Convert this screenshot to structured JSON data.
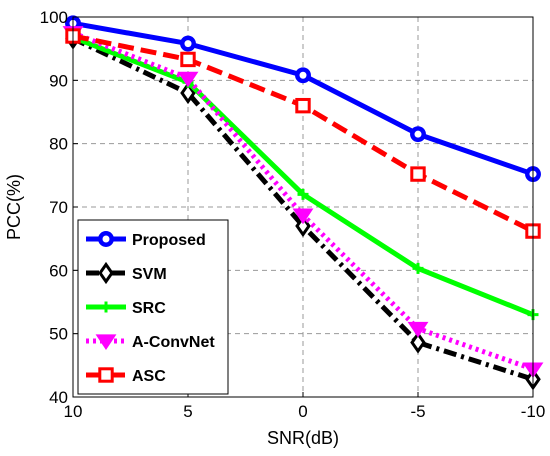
{
  "chart_data": {
    "type": "line",
    "xlabel": "SNR(dB)",
    "ylabel": "PCC(%)",
    "x": [
      10,
      5,
      0,
      -5,
      -10
    ],
    "x_tick_labels": [
      "10",
      "5",
      "0",
      "-5",
      "-10"
    ],
    "y_tick_labels": [
      "40",
      "50",
      "60",
      "70",
      "80",
      "90",
      "100"
    ],
    "y_ticks": [
      40,
      50,
      60,
      70,
      80,
      90,
      100
    ],
    "ylim": [
      40,
      100
    ],
    "grid": true,
    "legend_position": "bottom-left",
    "series": [
      {
        "name": "Proposed",
        "values": [
          99.0,
          95.8,
          90.8,
          81.5,
          75.2
        ],
        "color": "#0000ff",
        "marker": "circle",
        "dash": "solid"
      },
      {
        "name": "SVM",
        "values": [
          96.6,
          88.0,
          67.0,
          48.6,
          42.8
        ],
        "color": "#000000",
        "marker": "diamond",
        "dash": "dashdot"
      },
      {
        "name": "SRC",
        "values": [
          96.8,
          89.7,
          72.0,
          60.3,
          53.0
        ],
        "color": "#00ff00",
        "marker": "plus",
        "dash": "solid"
      },
      {
        "name": "A-ConvNet",
        "values": [
          97.5,
          90.3,
          68.7,
          50.8,
          44.4
        ],
        "color": "#ff00ff",
        "marker": "triangle-down",
        "dash": "dotted"
      },
      {
        "name": "ASC",
        "values": [
          97.0,
          93.3,
          86.0,
          75.2,
          66.2
        ],
        "color": "#ff0000",
        "marker": "square",
        "dash": "dashed"
      }
    ]
  }
}
